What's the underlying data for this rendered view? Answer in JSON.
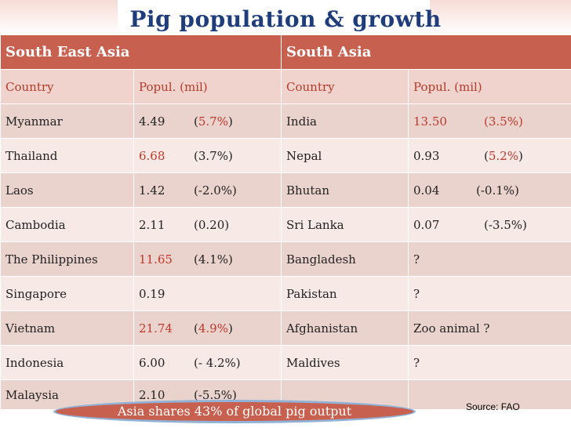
{
  "title": "Pig population & growth",
  "headers": {
    "sea": "South East Asia",
    "sa": "South Asia"
  },
  "subheaders": {
    "country": "Country",
    "popul": "Popul. (mil)"
  },
  "rows": [
    {
      "sea_country": "Myanmar",
      "sea_val": "4.49",
      "sea_open": "(",
      "sea_pct": "5.7%",
      "sea_close": ")",
      "sa_country": "India",
      "sa_val": "13.50",
      "sa_pct": "(3.5%)"
    },
    {
      "sea_country": "Thailand",
      "sea_val": "6.68",
      "sea_pct": "(3.7%)",
      "sa_country": "Nepal",
      "sa_val": "0.93",
      "sa_open": "(",
      "sa_pctred": "5.2%",
      "sa_close": ")"
    },
    {
      "sea_country": "Laos",
      "sea_val": "1.42",
      "sea_pct": "(-2.0%)",
      "sa_country": "Bhutan",
      "sa_val": "0.04",
      "sa_pct": "(-0.1%)"
    },
    {
      "sea_country": "Cambodia",
      "sea_val": "2.11",
      "sea_pct": "(0.20)",
      "sa_country": "Sri Lanka",
      "sa_val": "0.07",
      "sa_pct": "(-3.5%)"
    },
    {
      "sea_country": "The Philippines",
      "sea_val": "11.65",
      "sea_pct": "(4.1%)",
      "sa_country": "Bangladesh",
      "sa_val": "?"
    },
    {
      "sea_country": "Singapore",
      "sea_val": "0.19",
      "sa_country": "Pakistan",
      "sa_val": "?"
    },
    {
      "sea_country": "Vietnam",
      "sea_val": "21.74",
      "sea_open": "(",
      "sea_pct": "4.9%",
      "sea_close": ")",
      "sa_country": "Afghanistan",
      "sa_val": "Zoo animal ?"
    },
    {
      "sea_country": "Indonesia",
      "sea_val": "6.00",
      "sea_pct": "(- 4.2%)",
      "sa_country": "Maldives",
      "sa_val": "?"
    },
    {
      "sea_country": "Malaysia",
      "sea_val": "2.10",
      "sea_pct": "(-5.5%)"
    }
  ],
  "footer_note": "Asia shares 43% of global pig output",
  "source": "Source: FAO",
  "colors": {
    "header": "#c8604f",
    "title": "#1f3d7a",
    "highlight": "#c0392b"
  }
}
